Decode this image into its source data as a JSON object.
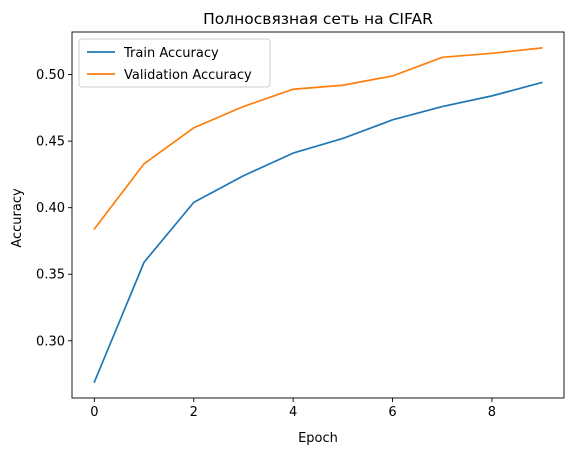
{
  "chart_data": {
    "type": "line",
    "title": "Полносвязная сеть на CIFAR",
    "xlabel": "Epoch",
    "ylabel": "Accuracy",
    "x": [
      0,
      1,
      2,
      3,
      4,
      5,
      6,
      7,
      8,
      9
    ],
    "xlim": [
      -0.45,
      9.45
    ],
    "ylim": [
      0.257,
      0.532
    ],
    "xticks": [
      0,
      2,
      4,
      6,
      8
    ],
    "yticks": [
      0.3,
      0.35,
      0.4,
      0.45,
      0.5
    ],
    "xtick_labels": [
      "0",
      "2",
      "4",
      "6",
      "8"
    ],
    "ytick_labels": [
      "0.30",
      "0.35",
      "0.40",
      "0.45",
      "0.50"
    ],
    "legend_position": "upper-left",
    "series": [
      {
        "name": "Train Accuracy",
        "color": "#1f77b4",
        "values": [
          0.269,
          0.359,
          0.404,
          0.424,
          0.441,
          0.452,
          0.466,
          0.476,
          0.484,
          0.494
        ]
      },
      {
        "name": "Validation Accuracy",
        "color": "#ff7f0e",
        "values": [
          0.384,
          0.433,
          0.46,
          0.476,
          0.489,
          0.492,
          0.499,
          0.513,
          0.516,
          0.52
        ]
      }
    ]
  }
}
